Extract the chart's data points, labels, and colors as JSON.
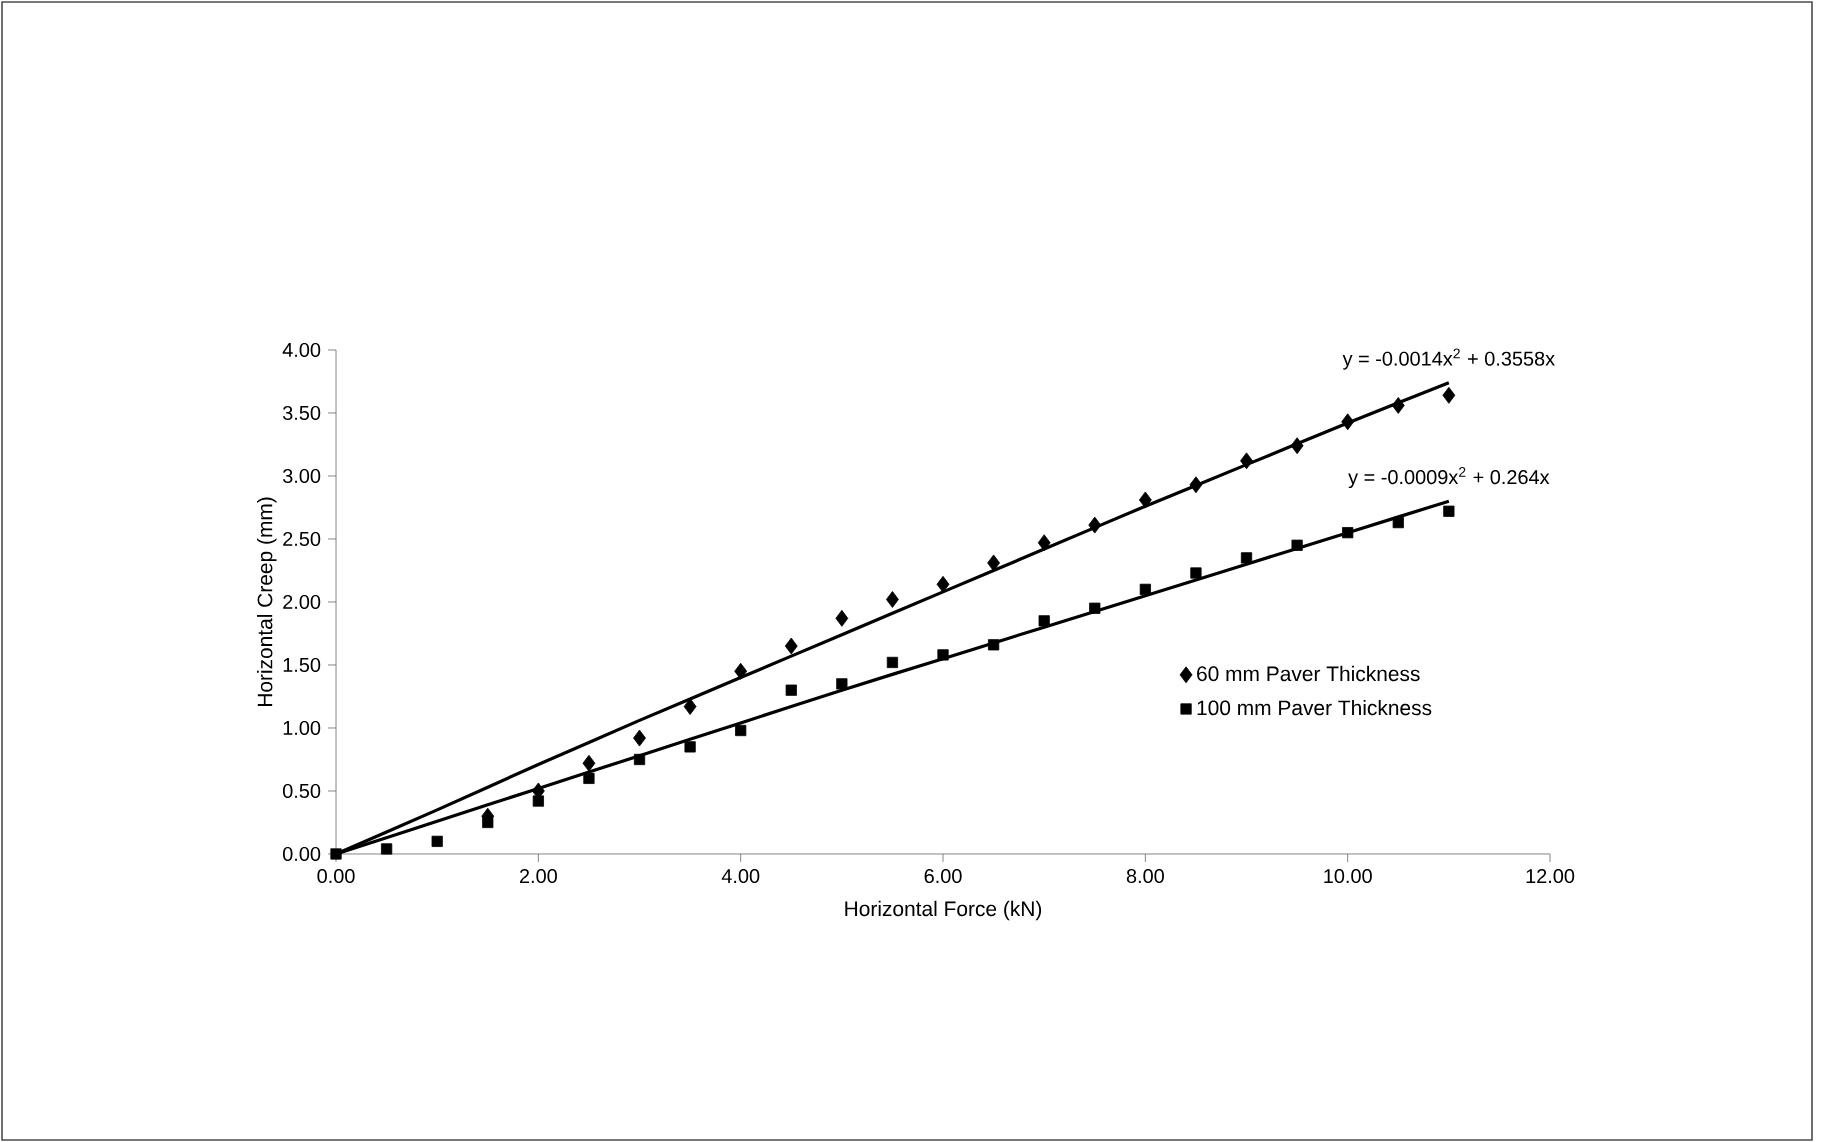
{
  "chart_data": {
    "type": "scatter",
    "xlabel": "Horizontal Force (kN)",
    "ylabel": "Horizontal Creep (mm)",
    "xlim": [
      0,
      12
    ],
    "ylim": [
      0,
      4
    ],
    "xticks": [
      {
        "value": 0,
        "label": "0.00"
      },
      {
        "value": 2,
        "label": "2.00"
      },
      {
        "value": 4,
        "label": "4.00"
      },
      {
        "value": 6,
        "label": "6.00"
      },
      {
        "value": 8,
        "label": "8.00"
      },
      {
        "value": 10,
        "label": "10.00"
      },
      {
        "value": 12,
        "label": "12.00"
      }
    ],
    "yticks": [
      {
        "value": 0,
        "label": "0.00"
      },
      {
        "value": 0.5,
        "label": "0.50"
      },
      {
        "value": 1,
        "label": "1.00"
      },
      {
        "value": 1.5,
        "label": "1.50"
      },
      {
        "value": 2,
        "label": "2.00"
      },
      {
        "value": 2.5,
        "label": "2.50"
      },
      {
        "value": 3,
        "label": "3.00"
      },
      {
        "value": 3.5,
        "label": "3.50"
      },
      {
        "value": 4,
        "label": "4.00"
      }
    ],
    "grid": false,
    "legend": "right",
    "series": [
      {
        "name": "60 mm Paver Thickness",
        "marker": "diamond",
        "color": "#000000",
        "x": [
          1.5,
          2,
          2.5,
          3,
          3.5,
          4,
          4.5,
          5,
          5.5,
          6,
          6.5,
          7,
          7.5,
          8,
          8.5,
          9,
          9.5,
          10,
          10.5,
          11
        ],
        "values": [
          0.3,
          0.5,
          0.72,
          0.92,
          1.17,
          1.45,
          1.65,
          1.87,
          2.02,
          2.14,
          2.31,
          2.47,
          2.61,
          2.81,
          2.93,
          3.12,
          3.24,
          3.43,
          3.56,
          3.64
        ]
      },
      {
        "name": "100 mm Paver Thickness",
        "marker": "square",
        "color": "#000000",
        "x": [
          0,
          0.5,
          1,
          1.5,
          2,
          2.5,
          3,
          3.5,
          4,
          4.5,
          5,
          5.5,
          6,
          6.5,
          7,
          7.5,
          8,
          8.5,
          9,
          9.5,
          10,
          10.5,
          11
        ],
        "values": [
          0,
          0.04,
          0.1,
          0.25,
          0.42,
          0.6,
          0.75,
          0.85,
          0.98,
          1.3,
          1.35,
          1.52,
          1.58,
          1.66,
          1.85,
          1.95,
          2.1,
          2.23,
          2.35,
          2.45,
          2.55,
          2.63,
          2.72
        ]
      },
      {
        "type": "line",
        "marker": "none",
        "line_style": "solid",
        "color": "#000000",
        "x": [
          0,
          1,
          2,
          3,
          4,
          5,
          6,
          7,
          8,
          9,
          10,
          11
        ],
        "values": [
          0,
          0.35,
          0.71,
          1.06,
          1.4,
          1.74,
          2.08,
          2.42,
          2.76,
          3.09,
          3.42,
          3.74
        ]
      },
      {
        "type": "line",
        "marker": "none",
        "line_style": "solid",
        "color": "#000000",
        "x": [
          0,
          1,
          2,
          3,
          4,
          5,
          6,
          7,
          8,
          9,
          10,
          11
        ],
        "values": [
          0,
          0.26,
          0.52,
          0.78,
          1.04,
          1.3,
          1.55,
          1.8,
          2.05,
          2.3,
          2.55,
          2.8
        ]
      }
    ],
    "annotations": [
      {
        "text": "y = -0.0014x$^{2}$ + 0.3558x",
        "x": 11,
        "y": 3.74
      },
      {
        "text": "y = -0.0009x$^{2}$ + 0.264x",
        "x": 11,
        "y": 2.8
      }
    ]
  }
}
